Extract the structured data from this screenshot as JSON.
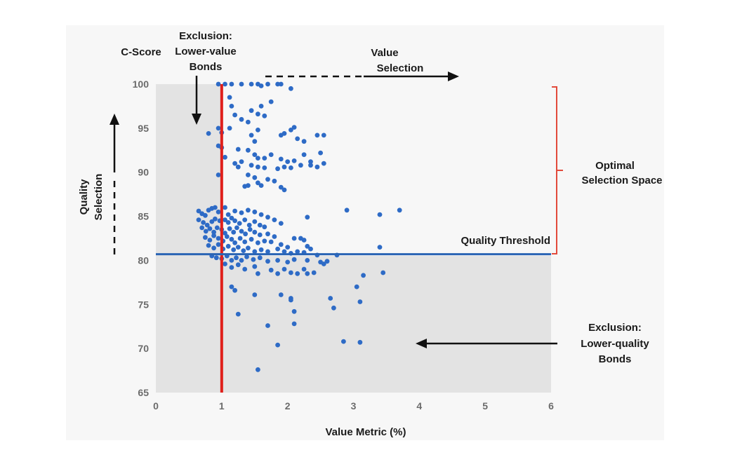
{
  "chart_data": {
    "type": "scatter",
    "ylabel_top": "C-Score",
    "xlabel": "Value Metric (%)",
    "xlim": [
      0,
      6
    ],
    "ylim": [
      65,
      100
    ],
    "x_ticks": [
      "0",
      "1",
      "2",
      "3",
      "4",
      "5",
      "6"
    ],
    "y_ticks": [
      "65",
      "70",
      "75",
      "80",
      "85",
      "90",
      "95",
      "100"
    ],
    "grid": false,
    "colors": {
      "points": "#2e6bc6",
      "value_cutoff_line": "#e0201b",
      "quality_threshold_line": "#2a64b4",
      "optimal_bracket": "#e24a3b",
      "exclusion_shading": "#e3e3e3"
    },
    "value_cutoff": 1.0,
    "quality_threshold": 80.7,
    "annotations": {
      "exclusion_value": [
        "Exclusion:",
        "Lower-value",
        "Bonds"
      ],
      "value_selection": [
        "Value",
        "Selection"
      ],
      "quality_selection": [
        "Quality",
        "Selection"
      ],
      "optimal_space": [
        "Optimal",
        "Selection Space"
      ],
      "quality_threshold": "Quality Threshold",
      "exclusion_quality": [
        "Exclusion:",
        "Lower-quality",
        "Bonds"
      ]
    },
    "points": [
      [
        0.95,
        100
      ],
      [
        1.05,
        100
      ],
      [
        1.15,
        100
      ],
      [
        1.3,
        100
      ],
      [
        1.45,
        100
      ],
      [
        1.55,
        100
      ],
      [
        1.7,
        100
      ],
      [
        1.85,
        100
      ],
      [
        1.9,
        100
      ],
      [
        2.05,
        99.5
      ],
      [
        1.6,
        99.8
      ],
      [
        1.12,
        98.5
      ],
      [
        1.15,
        97.5
      ],
      [
        1.45,
        97
      ],
      [
        1.55,
        96.6
      ],
      [
        1.6,
        97.5
      ],
      [
        1.65,
        96.4
      ],
      [
        1.75,
        98.0
      ],
      [
        1.4,
        95.7
      ],
      [
        1.3,
        96.0
      ],
      [
        1.2,
        96.5
      ],
      [
        0.8,
        94.4
      ],
      [
        1.0,
        94.5
      ],
      [
        0.95,
        95
      ],
      [
        1.12,
        95
      ],
      [
        1.55,
        94.8
      ],
      [
        1.5,
        93.5
      ],
      [
        1.45,
        94.2
      ],
      [
        1.95,
        94.4
      ],
      [
        2.05,
        94.8
      ],
      [
        2.1,
        95.1
      ],
      [
        1.9,
        94.2
      ],
      [
        2.15,
        93.8
      ],
      [
        2.25,
        93.5
      ],
      [
        2.45,
        94.2
      ],
      [
        2.55,
        94.2
      ],
      [
        0.95,
        93
      ],
      [
        1.0,
        92.8
      ],
      [
        1.05,
        91.7
      ],
      [
        1.25,
        92.6
      ],
      [
        1.4,
        92.5
      ],
      [
        1.5,
        92.0
      ],
      [
        1.55,
        91.6
      ],
      [
        1.65,
        91.6
      ],
      [
        1.75,
        92.0
      ],
      [
        1.9,
        91.5
      ],
      [
        2.0,
        91.2
      ],
      [
        2.1,
        91.3
      ],
      [
        2.25,
        92.0
      ],
      [
        2.35,
        91.2
      ],
      [
        2.5,
        92.2
      ],
      [
        2.55,
        91.0
      ],
      [
        2.45,
        90.6
      ],
      [
        2.35,
        90.8
      ],
      [
        1.2,
        91.0
      ],
      [
        1.25,
        90.6
      ],
      [
        1.3,
        91.2
      ],
      [
        1.45,
        90.8
      ],
      [
        1.55,
        90.6
      ],
      [
        1.65,
        90.5
      ],
      [
        1.85,
        90.4
      ],
      [
        1.95,
        90.6
      ],
      [
        2.05,
        90.5
      ],
      [
        2.2,
        90.8
      ],
      [
        0.95,
        89.7
      ],
      [
        1.4,
        89.7
      ],
      [
        1.5,
        89.4
      ],
      [
        1.55,
        88.8
      ],
      [
        1.6,
        88.5
      ],
      [
        1.7,
        89.2
      ],
      [
        1.8,
        89.0
      ],
      [
        1.9,
        88.3
      ],
      [
        1.95,
        88.0
      ],
      [
        1.4,
        88.5
      ],
      [
        1.35,
        88.4
      ],
      [
        0.65,
        85.6
      ],
      [
        0.7,
        85.3
      ],
      [
        0.75,
        85.1
      ],
      [
        0.8,
        85.7
      ],
      [
        0.85,
        85.9
      ],
      [
        0.9,
        86.0
      ],
      [
        0.95,
        85.5
      ],
      [
        1.05,
        86.0
      ],
      [
        1.1,
        85.2
      ],
      [
        1.2,
        85.6
      ],
      [
        1.3,
        85.4
      ],
      [
        1.4,
        85.7
      ],
      [
        1.5,
        85.5
      ],
      [
        1.6,
        85.2
      ],
      [
        1.7,
        84.9
      ],
      [
        1.8,
        84.6
      ],
      [
        1.9,
        84.2
      ],
      [
        2.3,
        84.9
      ],
      [
        2.9,
        85.7
      ],
      [
        3.4,
        85.2
      ],
      [
        3.7,
        85.7
      ],
      [
        0.65,
        84.6
      ],
      [
        0.72,
        84.3
      ],
      [
        0.78,
        84.0
      ],
      [
        0.85,
        84.4
      ],
      [
        0.9,
        84.7
      ],
      [
        0.97,
        84.5
      ],
      [
        1.05,
        84.6
      ],
      [
        1.1,
        84.3
      ],
      [
        1.15,
        84.8
      ],
      [
        1.2,
        84.5
      ],
      [
        1.27,
        84.2
      ],
      [
        1.35,
        84.6
      ],
      [
        1.42,
        84.0
      ],
      [
        1.5,
        84.4
      ],
      [
        1.58,
        84.0
      ],
      [
        1.65,
        83.8
      ],
      [
        0.7,
        83.7
      ],
      [
        0.76,
        83.3
      ],
      [
        0.82,
        83.6
      ],
      [
        0.88,
        83.2
      ],
      [
        0.93,
        83.7
      ],
      [
        1.0,
        83.5
      ],
      [
        1.05,
        83.1
      ],
      [
        1.12,
        83.6
      ],
      [
        1.18,
        83.2
      ],
      [
        1.23,
        83.7
      ],
      [
        1.3,
        83.3
      ],
      [
        1.36,
        83.0
      ],
      [
        1.43,
        83.5
      ],
      [
        1.5,
        83.2
      ],
      [
        1.58,
        82.9
      ],
      [
        1.7,
        83.0
      ],
      [
        1.8,
        82.7
      ],
      [
        0.75,
        82.6
      ],
      [
        0.82,
        82.3
      ],
      [
        0.88,
        82.8
      ],
      [
        0.95,
        82.5
      ],
      [
        1.02,
        82.2
      ],
      [
        1.08,
        82.7
      ],
      [
        1.15,
        82.4
      ],
      [
        1.2,
        82.0
      ],
      [
        1.28,
        82.5
      ],
      [
        1.35,
        82.1
      ],
      [
        1.45,
        82.4
      ],
      [
        1.55,
        82.0
      ],
      [
        1.65,
        82.2
      ],
      [
        1.75,
        82.1
      ],
      [
        1.9,
        81.8
      ],
      [
        2.1,
        82.5
      ],
      [
        2.2,
        82.5
      ],
      [
        2.25,
        82.3
      ],
      [
        2.0,
        81.5
      ],
      [
        2.3,
        81.6
      ],
      [
        2.35,
        81.3
      ],
      [
        3.4,
        81.5
      ],
      [
        0.8,
        81.7
      ],
      [
        0.88,
        81.4
      ],
      [
        0.95,
        81.8
      ],
      [
        1.02,
        81.3
      ],
      [
        1.1,
        81.6
      ],
      [
        1.18,
        81.2
      ],
      [
        1.25,
        81.5
      ],
      [
        1.33,
        81.1
      ],
      [
        1.4,
        81.4
      ],
      [
        1.5,
        81.0
      ],
      [
        1.6,
        81.2
      ],
      [
        1.7,
        81.0
      ],
      [
        1.85,
        81.3
      ],
      [
        1.95,
        81.0
      ],
      [
        2.05,
        80.8
      ],
      [
        2.15,
        81.0
      ],
      [
        2.25,
        80.9
      ],
      [
        2.45,
        80.6
      ],
      [
        2.75,
        80.6
      ],
      [
        0.85,
        80.5
      ],
      [
        0.92,
        80.3
      ],
      [
        1.0,
        80.2
      ],
      [
        1.08,
        80.5
      ],
      [
        1.15,
        80.0
      ],
      [
        1.22,
        80.3
      ],
      [
        1.3,
        80.0
      ],
      [
        1.38,
        80.4
      ],
      [
        1.48,
        80.1
      ],
      [
        1.58,
        80.3
      ],
      [
        1.7,
        79.9
      ],
      [
        1.85,
        80.0
      ],
      [
        2.0,
        79.8
      ],
      [
        2.1,
        80.1
      ],
      [
        2.3,
        80.0
      ],
      [
        2.5,
        79.8
      ],
      [
        2.6,
        79.9
      ],
      [
        1.05,
        79.6
      ],
      [
        1.15,
        79.2
      ],
      [
        1.25,
        79.5
      ],
      [
        1.35,
        79.0
      ],
      [
        1.5,
        79.3
      ],
      [
        1.55,
        78.5
      ],
      [
        1.75,
        78.9
      ],
      [
        1.85,
        78.5
      ],
      [
        1.95,
        79.0
      ],
      [
        2.05,
        78.6
      ],
      [
        2.15,
        78.5
      ],
      [
        2.25,
        79.0
      ],
      [
        2.3,
        78.5
      ],
      [
        2.4,
        78.6
      ],
      [
        2.55,
        79.6
      ],
      [
        3.15,
        78.3
      ],
      [
        3.45,
        78.6
      ],
      [
        1.15,
        77.0
      ],
      [
        1.2,
        76.6
      ],
      [
        1.5,
        76.1
      ],
      [
        1.9,
        76.1
      ],
      [
        2.05,
        75.7
      ],
      [
        2.05,
        75.5
      ],
      [
        2.65,
        75.7
      ],
      [
        2.7,
        74.6
      ],
      [
        3.05,
        77.0
      ],
      [
        3.1,
        75.3
      ],
      [
        2.1,
        74.2
      ],
      [
        1.25,
        73.9
      ],
      [
        1.7,
        72.6
      ],
      [
        2.1,
        72.8
      ],
      [
        1.85,
        70.4
      ],
      [
        2.85,
        70.8
      ],
      [
        3.1,
        70.7
      ],
      [
        1.55,
        67.6
      ]
    ]
  }
}
